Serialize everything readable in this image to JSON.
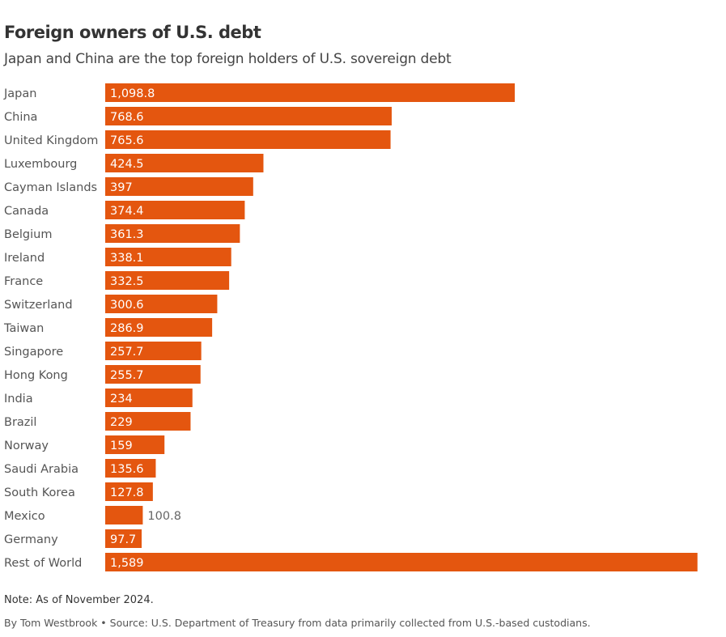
{
  "chart_data": {
    "type": "bar",
    "orientation": "horizontal",
    "title": "Foreign owners of U.S. debt",
    "subtitle": "Japan and China are the top foreign holders of U.S. sovereign debt",
    "categories": [
      "Japan",
      "China",
      "United Kingdom",
      "Luxembourg",
      "Cayman Islands",
      "Canada",
      "Belgium",
      "Ireland",
      "France",
      "Switzerland",
      "Taiwan",
      "Singapore",
      "Hong Kong",
      "India",
      "Brazil",
      "Norway",
      "Saudi Arabia",
      "South Korea",
      "Mexico",
      "Germany",
      "Rest of World"
    ],
    "values": [
      1098.8,
      768.6,
      765.6,
      424.5,
      397,
      374.4,
      361.3,
      338.1,
      332.5,
      300.6,
      286.9,
      257.7,
      255.7,
      234,
      229,
      159,
      135.6,
      127.8,
      100.8,
      97.7,
      1589
    ],
    "labels": [
      "1,098.8",
      "768.6",
      "765.6",
      "424.5",
      "397",
      "374.4",
      "361.3",
      "338.1",
      "332.5",
      "300.6",
      "286.9",
      "257.7",
      "255.7",
      "234",
      "229",
      "159",
      "135.6",
      "127.8",
      "100.8",
      "97.7",
      "1,589"
    ],
    "bar_color": "#e4560f",
    "grid": false
  },
  "note": "Note: As of November 2024.",
  "credit": "By Tom Westbrook • Source: U.S. Department of Treasury from data primarily collected from U.S.-based custodians."
}
